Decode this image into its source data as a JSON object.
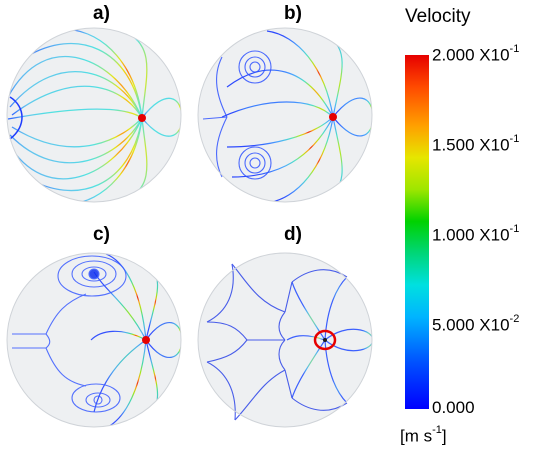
{
  "panels": [
    {
      "label": "a)"
    },
    {
      "label": "b)"
    },
    {
      "label": "c)"
    },
    {
      "label": "d)"
    }
  ],
  "legend": {
    "title": "Velocity",
    "ticks": [
      {
        "mantissa": "2.000",
        "base": "X10",
        "exp": "-1"
      },
      {
        "mantissa": "1.500",
        "base": "X10",
        "exp": "-1"
      },
      {
        "mantissa": "1.000",
        "base": "X10",
        "exp": "-1"
      },
      {
        "mantissa": "5.000",
        "base": "X10",
        "exp": "-2"
      },
      {
        "mantissa": "0.000",
        "base": "",
        "exp": ""
      }
    ],
    "units_prefix": "[m s",
    "units_exp": "-1",
    "units_suffix": "]",
    "min": 0.0,
    "max": 0.2,
    "colors": [
      "#e60000",
      "#ff4a00",
      "#ffa000",
      "#e6e600",
      "#9ee600",
      "#00d200",
      "#00d678",
      "#00e0e0",
      "#00b4ff",
      "#0050ff",
      "#0000ff"
    ]
  }
}
